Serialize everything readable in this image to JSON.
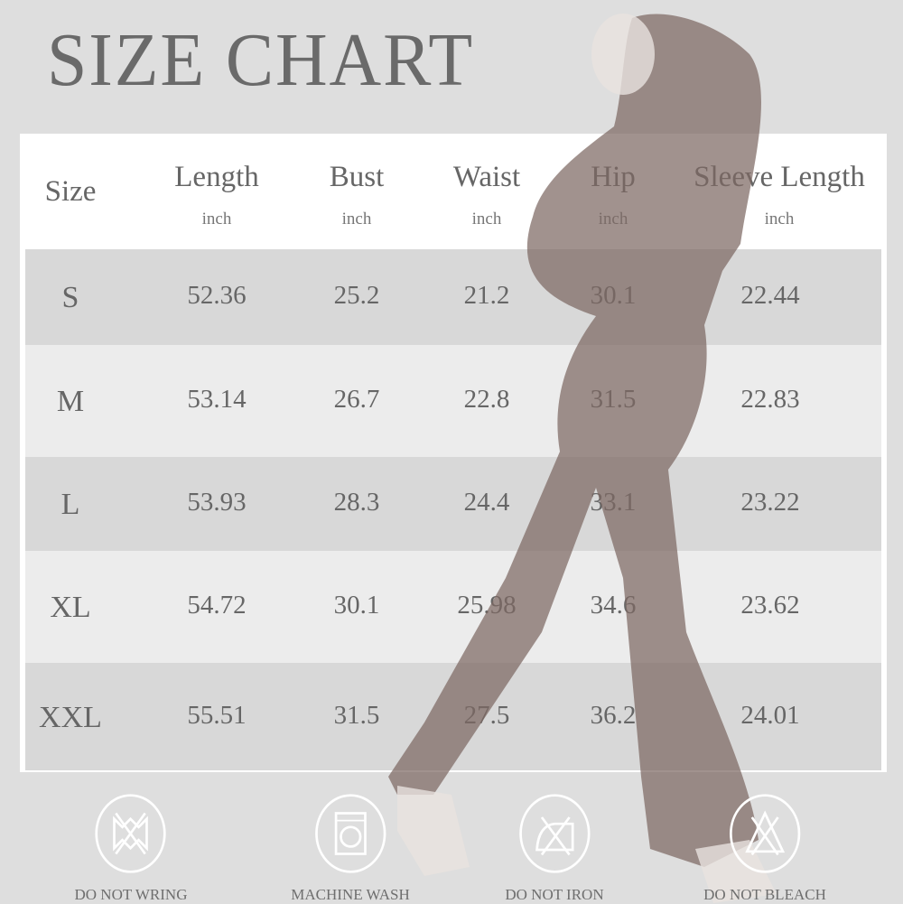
{
  "title": "SIZE CHART",
  "columns": [
    {
      "label": "Size",
      "unit": ""
    },
    {
      "label": "Length",
      "unit": "inch"
    },
    {
      "label": "Bust",
      "unit": "inch"
    },
    {
      "label": "Waist",
      "unit": "inch"
    },
    {
      "label": "Hip",
      "unit": "inch"
    },
    {
      "label": "Sleeve Length",
      "unit": "inch"
    }
  ],
  "rows": [
    [
      "S",
      "52.36",
      "25.2",
      "21.2",
      "30.1",
      "22.44"
    ],
    [
      "M",
      "53.14",
      "26.7",
      "22.8",
      "31.5",
      "22.83"
    ],
    [
      "L",
      "53.93",
      "28.3",
      "24.4",
      "33.1",
      "23.22"
    ],
    [
      "XL",
      "54.72",
      "30.1",
      "25.98",
      "34.6",
      "23.62"
    ],
    [
      "XXL",
      "55.51",
      "31.5",
      "27.5",
      "36.2",
      "24.01"
    ]
  ],
  "care": [
    {
      "label": "DO NOT WRING",
      "icon": "do-not-wring-icon"
    },
    {
      "label": "MACHINE WASH",
      "icon": "machine-wash-icon"
    },
    {
      "label": "DO NOT IRON",
      "icon": "do-not-iron-icon"
    },
    {
      "label": "DO NOT BLEACH",
      "icon": "do-not-bleach-icon"
    }
  ],
  "colors": {
    "background": "#dedede",
    "row_dark": "#d8d8d8",
    "row_light": "#ececec",
    "text": "#666666",
    "garment": "#7d6862"
  }
}
